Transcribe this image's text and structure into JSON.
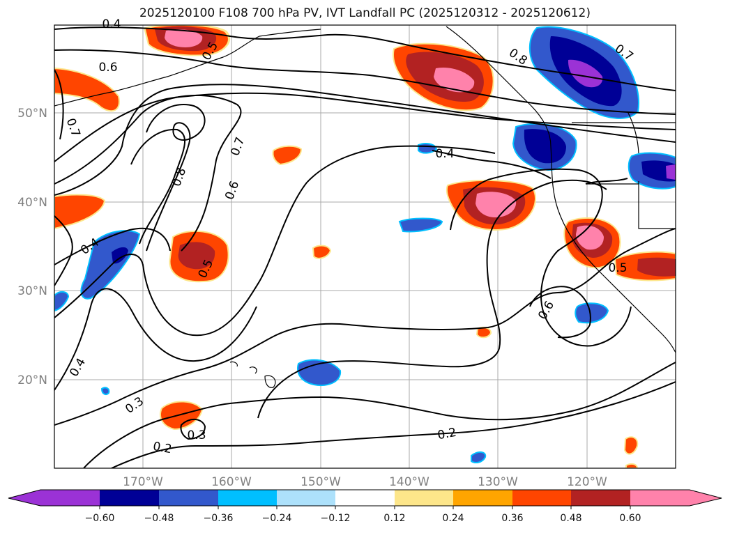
{
  "title": "2025120100 F108 700 hPa PV, IVT Landfall PC (2025120312 - 2025120612)",
  "lat_labels": [
    "50°N",
    "40°N",
    "30°N",
    "20°N"
  ],
  "lon_labels": [
    "170°W",
    "160°W",
    "150°W",
    "140°W",
    "130°W",
    "120°W"
  ],
  "contour_labels": [
    "0.4",
    "0.6",
    "0.7",
    "0.5",
    "0.8",
    "0.7",
    "0.8",
    "0.7",
    "0.6",
    "0.4",
    "0.5",
    "0.4",
    "0.4",
    "0.3",
    "0.2",
    "0.3",
    "0.2",
    "0.6",
    "0.5"
  ],
  "colorbar": {
    "colors": [
      "#9b32d6",
      "#000096",
      "#3258cc",
      "#00bfff",
      "#ade1fb",
      "#ffffff",
      "#fde68a",
      "#ffa500",
      "#ff4500",
      "#b22222",
      "#ff82ab"
    ],
    "tick_labels": [
      "−0.60",
      "−0.48",
      "−0.36",
      "−0.24",
      "−0.12",
      "0.12",
      "0.24",
      "0.36",
      "0.48",
      "0.60"
    ]
  }
}
